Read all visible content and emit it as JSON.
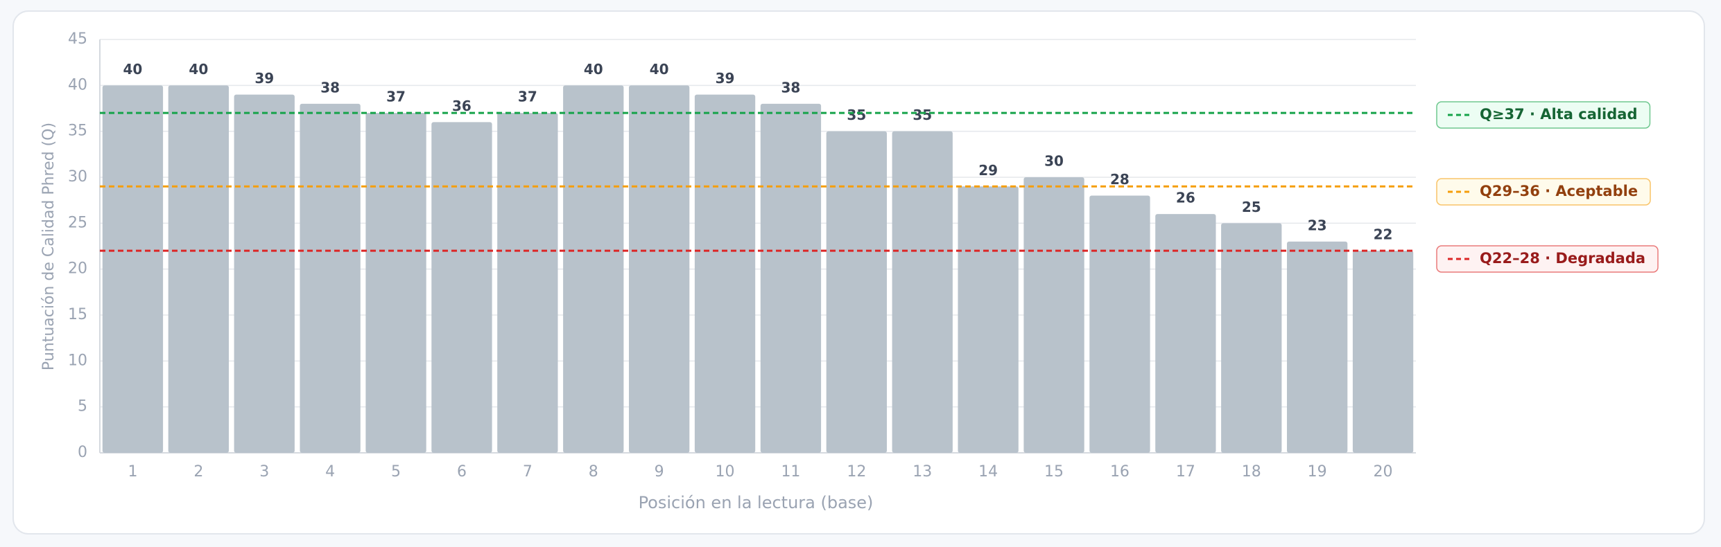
{
  "chart_data": {
    "type": "bar",
    "categories": [
      "1",
      "2",
      "3",
      "4",
      "5",
      "6",
      "7",
      "8",
      "9",
      "10",
      "11",
      "12",
      "13",
      "14",
      "15",
      "16",
      "17",
      "18",
      "19",
      "20"
    ],
    "values": [
      40,
      40,
      39,
      38,
      37,
      36,
      37,
      40,
      40,
      39,
      38,
      35,
      35,
      29,
      30,
      28,
      26,
      25,
      23,
      22
    ],
    "color": "#b8c2cb",
    "ylim": [
      0,
      45
    ],
    "yticks": [
      0,
      5,
      10,
      15,
      20,
      25,
      30,
      35,
      40,
      45
    ],
    "grid": true,
    "x_label": "Posición en la lectura (base)",
    "y_label": "Puntuación de Calidad Phred (Q)",
    "reference_lines": [
      {
        "value": 37,
        "color": "#16a34a",
        "label": "Q≥37 · Alta calidad",
        "bg": "#ecfdf3",
        "text_color": "#166534"
      },
      {
        "value": 29,
        "color": "#f59e0b",
        "label": "Q29–36 · Aceptable",
        "bg": "#fffbeb",
        "text_color": "#92400e"
      },
      {
        "value": 22,
        "color": "#dc2626",
        "label": "Q22–28 · Degradada",
        "bg": "#fef2f2",
        "text_color": "#991b1b"
      }
    ]
  }
}
